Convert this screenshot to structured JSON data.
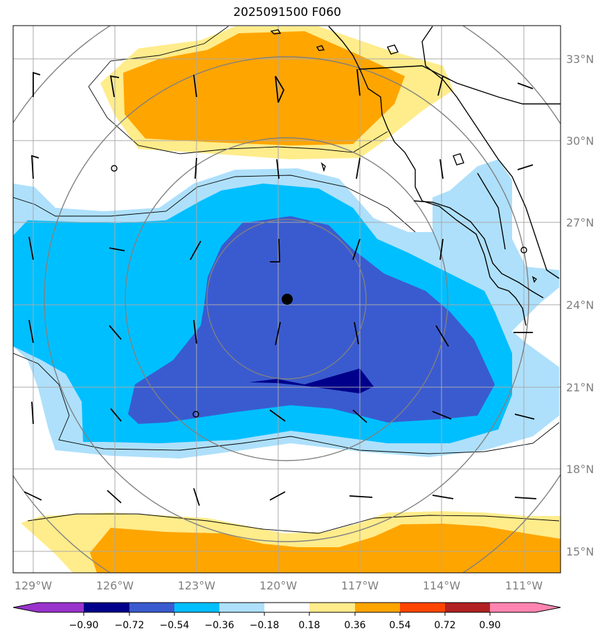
{
  "title": "2025091500 F060",
  "colors": {
    "neg_090": "#9933cc",
    "neg_072": "#00008b",
    "neg_054": "#3a5bcf",
    "neg_036": "#00bfff",
    "neg_018": "#aee0fb",
    "zero": "#ffffff",
    "pos_018": "#ffec8b",
    "pos_036": "#ffa500",
    "pos_054": "#ff4500",
    "pos_072": "#b22222",
    "pos_090": "#ff85b0",
    "grid": "#9a9a9a",
    "coast": "#000000",
    "ring": "#808080"
  },
  "map": {
    "lat_labels": [
      "33°N",
      "30°N",
      "27°N",
      "24°N",
      "21°N",
      "18°N",
      "15°N"
    ],
    "lon_labels": [
      "129°W",
      "126°W",
      "123°W",
      "120°W",
      "117°W",
      "114°W",
      "111°W"
    ],
    "center_marker": "storm-center"
  },
  "colorbar": {
    "labels": [
      "−0.90",
      "−0.72",
      "−0.54",
      "−0.36",
      "−0.18",
      "0.18",
      "0.36",
      "0.54",
      "0.72",
      "0.90"
    ]
  }
}
